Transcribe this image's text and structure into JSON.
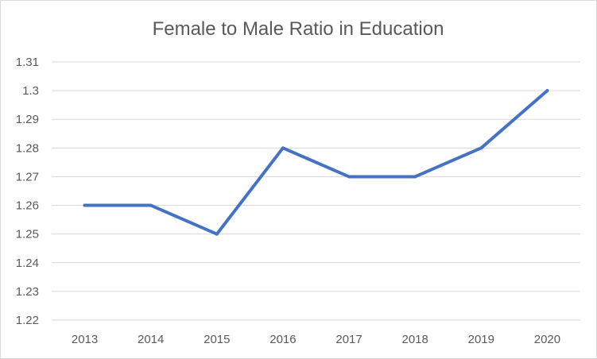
{
  "chart_data": {
    "type": "line",
    "title": "Female to Male Ratio in Education",
    "xlabel": "",
    "ylabel": "",
    "categories": [
      "2013",
      "2014",
      "2015",
      "2016",
      "2017",
      "2018",
      "2019",
      "2020"
    ],
    "series": [
      {
        "values": [
          1.26,
          1.26,
          1.25,
          1.28,
          1.27,
          1.27,
          1.28,
          1.3
        ],
        "color": "#4472c4"
      }
    ],
    "ylim": [
      1.22,
      1.31
    ],
    "yticks": [
      "1.22",
      "1.23",
      "1.24",
      "1.25",
      "1.26",
      "1.27",
      "1.28",
      "1.29",
      "1.3",
      "1.31"
    ],
    "grid": true,
    "legend": "none"
  }
}
